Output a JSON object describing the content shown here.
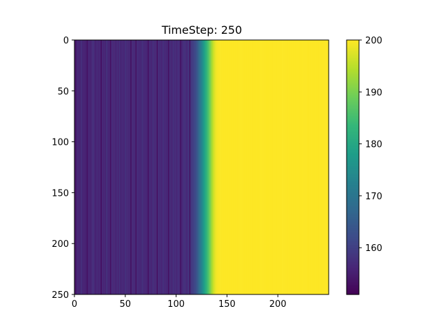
{
  "chart_data": {
    "type": "heatmap",
    "title": "TimeStep: 250",
    "xlabel": "",
    "ylabel": "",
    "x_range": [
      0,
      250
    ],
    "y_range": [
      0,
      250
    ],
    "y_inverted": true,
    "x_ticks": [
      "0",
      "50",
      "100",
      "150",
      "200"
    ],
    "y_ticks": [
      "0",
      "50",
      "100",
      "150",
      "200",
      "250"
    ],
    "colormap": "viridis",
    "color_range": [
      151,
      200
    ],
    "colorbar_ticks": [
      "160",
      "170",
      "180",
      "190",
      "200"
    ],
    "profile_along_x": {
      "note": "values are constant along y; each column has the value below",
      "x": [
        0,
        110,
        115,
        120,
        122,
        124,
        126,
        128,
        130,
        132,
        134,
        136,
        138,
        140,
        145,
        250
      ],
      "value": [
        156,
        157,
        159,
        163,
        167,
        171,
        175,
        179,
        183,
        187,
        191,
        195,
        198,
        199.5,
        200,
        200
      ]
    },
    "low_region_stripes": {
      "x_range": [
        0,
        115
      ],
      "base_value": 156,
      "darker_lines_x": [
        1,
        12,
        26,
        35,
        55,
        60,
        72,
        81,
        92,
        104,
        113
      ],
      "lighter_lines_x": [
        6,
        18,
        31,
        44,
        50,
        66,
        77,
        87,
        97,
        108
      ]
    },
    "grid": false,
    "colorbar_position": "right"
  }
}
